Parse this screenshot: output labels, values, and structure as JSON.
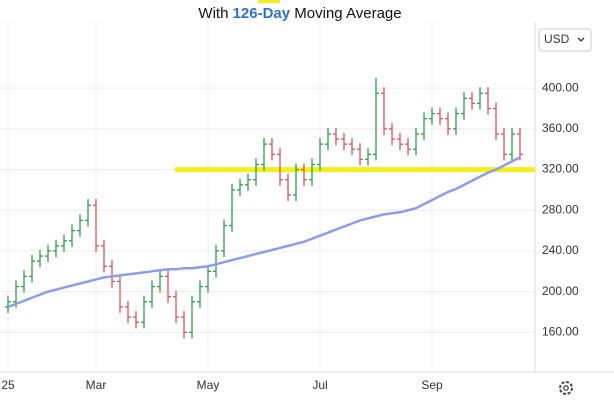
{
  "chart_data": {
    "type": "ohlc",
    "title": {
      "before": "With",
      "highlight": "126-Day",
      "after": "Moving Average"
    },
    "currency": "USD",
    "categories": [
      "25",
      null,
      null,
      null,
      null,
      null,
      null,
      null,
      null,
      null,
      null,
      "Mar",
      null,
      null,
      null,
      null,
      null,
      null,
      null,
      null,
      null,
      null,
      null,
      null,
      null,
      "May",
      null,
      null,
      null,
      null,
      null,
      null,
      null,
      null,
      null,
      null,
      null,
      null,
      null,
      "Jul",
      null,
      null,
      null,
      null,
      null,
      null,
      null,
      null,
      null,
      null,
      null,
      null,
      null,
      "Sep",
      null,
      null,
      null,
      null,
      null,
      null,
      null,
      null,
      null,
      null,
      null
    ],
    "open": [
      185,
      190,
      205,
      215,
      230,
      235,
      240,
      245,
      250,
      260,
      270,
      285,
      245,
      225,
      210,
      185,
      175,
      170,
      190,
      205,
      215,
      195,
      175,
      160,
      190,
      205,
      220,
      240,
      265,
      300,
      305,
      310,
      325,
      345,
      335,
      310,
      295,
      320,
      310,
      325,
      345,
      355,
      350,
      345,
      340,
      330,
      335,
      395,
      360,
      350,
      345,
      340,
      355,
      370,
      375,
      370,
      360,
      375,
      390,
      385,
      395,
      380,
      355,
      335,
      355
    ],
    "high": [
      196,
      211,
      221,
      236,
      241,
      246,
      251,
      256,
      266,
      276,
      291,
      291,
      251,
      231,
      216,
      191,
      181,
      196,
      211,
      221,
      221,
      201,
      181,
      196,
      211,
      226,
      246,
      271,
      306,
      311,
      316,
      331,
      351,
      351,
      341,
      316,
      326,
      326,
      331,
      351,
      361,
      361,
      356,
      351,
      346,
      341,
      410,
      401,
      366,
      356,
      351,
      361,
      376,
      381,
      381,
      376,
      381,
      396,
      396,
      401,
      401,
      386,
      361,
      361,
      361
    ],
    "low": [
      179,
      184,
      199,
      209,
      224,
      229,
      234,
      239,
      244,
      254,
      264,
      239,
      219,
      204,
      179,
      169,
      164,
      164,
      184,
      199,
      189,
      169,
      154,
      154,
      184,
      199,
      214,
      234,
      259,
      294,
      299,
      304,
      319,
      329,
      304,
      289,
      289,
      304,
      304,
      319,
      339,
      344,
      339,
      334,
      324,
      324,
      329,
      354,
      344,
      339,
      334,
      334,
      349,
      364,
      364,
      354,
      354,
      369,
      379,
      379,
      374,
      349,
      329,
      329,
      329
    ],
    "close": [
      190,
      205,
      215,
      230,
      235,
      240,
      245,
      250,
      260,
      270,
      285,
      245,
      225,
      210,
      185,
      175,
      170,
      190,
      205,
      215,
      195,
      175,
      160,
      190,
      205,
      220,
      240,
      265,
      300,
      305,
      310,
      325,
      345,
      335,
      310,
      295,
      320,
      310,
      325,
      345,
      355,
      350,
      345,
      340,
      330,
      335,
      395,
      360,
      350,
      345,
      340,
      355,
      370,
      375,
      370,
      360,
      375,
      390,
      385,
      395,
      380,
      355,
      335,
      355,
      335
    ],
    "up_color": "#2e9d4f",
    "down_color": "#e0525d",
    "moving_average": {
      "color": "#8c9eea",
      "values": [
        185,
        188,
        191,
        194,
        197,
        200,
        202,
        204,
        206,
        208,
        210,
        212,
        214,
        215,
        216,
        217,
        218,
        219,
        220,
        221,
        222,
        222,
        223,
        223,
        224,
        225,
        227,
        229,
        231,
        233,
        235,
        237,
        239,
        241,
        243,
        245,
        247,
        249,
        252,
        255,
        258,
        261,
        264,
        267,
        270,
        272,
        274,
        276,
        277,
        278,
        280,
        282,
        286,
        290,
        294,
        298,
        301,
        305,
        309,
        313,
        317,
        320,
        324,
        328,
        332
      ]
    },
    "hline": {
      "value": 320,
      "color": "#f2ef1a"
    },
    "ylim": [
      123,
      467
    ],
    "yticks": [
      {
        "value": 160,
        "label": "160.00"
      },
      {
        "value": 200,
        "label": "200.00"
      },
      {
        "value": 240,
        "label": "240.00"
      },
      {
        "value": 280,
        "label": "280.00"
      },
      {
        "value": 320,
        "label": "320.00"
      },
      {
        "value": 360,
        "label": "360.00"
      },
      {
        "value": 400,
        "label": "400.00"
      }
    ],
    "grid": true
  }
}
